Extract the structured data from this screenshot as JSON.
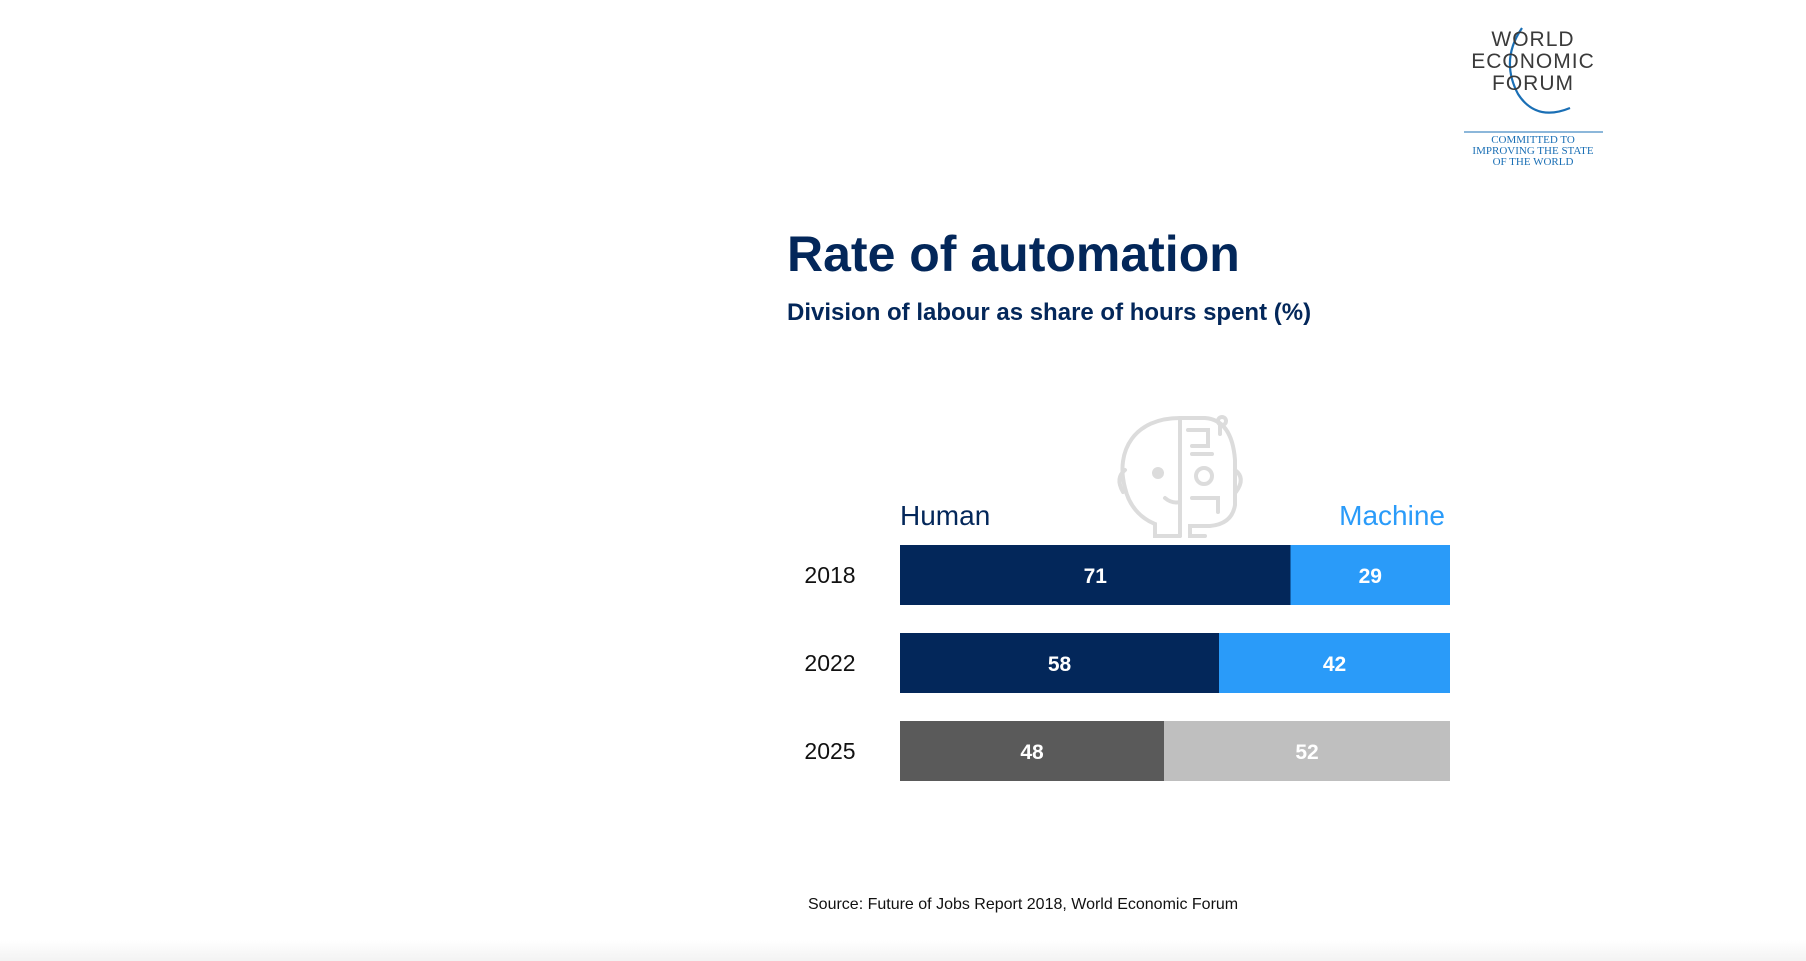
{
  "logo": {
    "lines": [
      "WORLD",
      "ECONOMIC",
      "FORUM"
    ],
    "tagline": [
      "COMMITTED TO",
      "IMPROVING THE STATE",
      "OF THE WORLD"
    ],
    "color": "#1a6fb5",
    "text_color": "#333333"
  },
  "chart_data": {
    "type": "bar",
    "orientation": "horizontal",
    "stacked": true,
    "title": "Rate of automation",
    "subtitle": "Division of labour as share of hours spent (%)",
    "categories": [
      "2018",
      "2022",
      "2025"
    ],
    "series": [
      {
        "name": "Human",
        "values": [
          71,
          58,
          48
        ],
        "colors": [
          "#03275a",
          "#03275a",
          "#5a5a5a"
        ]
      },
      {
        "name": "Machine",
        "values": [
          29,
          42,
          52
        ],
        "colors": [
          "#2a9bf9",
          "#2a9bf9",
          "#bfbfbf"
        ]
      }
    ],
    "series_label_colors": [
      "#03275a",
      "#2a9bf9"
    ],
    "xlim": [
      0,
      100
    ],
    "grid": false,
    "legend": "top",
    "source": "Source: Future of Jobs Report 2018, World Economic Forum",
    "icon": "human-robot-face-icon"
  }
}
